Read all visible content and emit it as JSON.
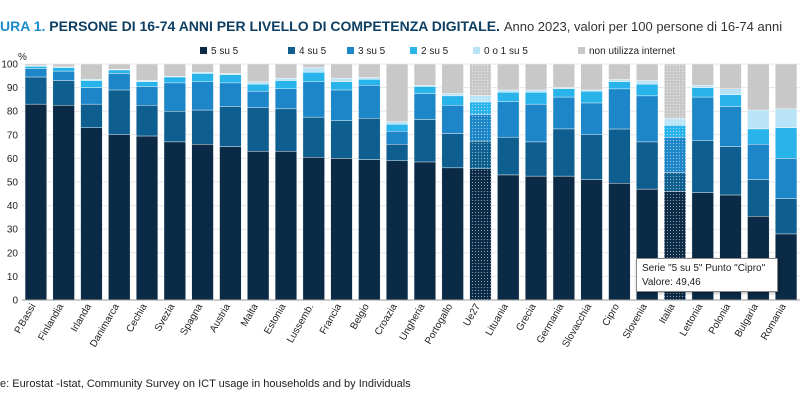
{
  "header": {
    "figure_label": "URA 1.",
    "title": "PERSONE DI 16-74 ANNI PER LIVELLO DI COMPETENZA DIGITALE.",
    "subtitle": "Anno 2023, valori per 100 persone di 16-74 anni"
  },
  "source": "e: Eurostat -Istat, Community Survey on ICT usage in households and by Individuals",
  "tooltip": {
    "line1": "Serie \"5 su 5\" Punto \"Cipro\"",
    "line2": "Valore: 49,46"
  },
  "chart_data": {
    "type": "bar",
    "stacked": true,
    "ylim": [
      0,
      100
    ],
    "y_unit_label": "%",
    "y_ticks": [
      0,
      10,
      20,
      30,
      40,
      50,
      60,
      70,
      80,
      90,
      100
    ],
    "y_tick_labels": [
      "0",
      "10",
      "20",
      "30",
      "40",
      "50",
      "60",
      "70",
      "80",
      "90",
      "100"
    ],
    "legend_position": "top",
    "categories": [
      "P.Bassi",
      "Finlandia",
      "Irlanda",
      "Danimarca",
      "Cechia",
      "Svezia",
      "Spagna",
      "Austria",
      "Malta",
      "Estonia",
      "Lussemb.",
      "Francia",
      "Belgio",
      "Croazia",
      "Ungheria",
      "Portogallo",
      "Ue27",
      "Lituania",
      "Grecia",
      "Germania",
      "Slovacchia",
      "Cipro",
      "Slovenia",
      "Italia",
      "Lettonia",
      "Polonia",
      "Bulgaria",
      "Romania"
    ],
    "highlighted_categories": [
      "Ue27",
      "Italia"
    ],
    "series": [
      {
        "name": "5 su 5",
        "color": "#0b2a45",
        "values": [
          83,
          82.5,
          73,
          70,
          69.5,
          67,
          66,
          65,
          63,
          63,
          60.5,
          60,
          59.5,
          59,
          58.5,
          56,
          55.6,
          53,
          52.5,
          52.5,
          51,
          49.46,
          47,
          46,
          45.5,
          44.5,
          35.5,
          28
        ]
      },
      {
        "name": "4 su 5",
        "color": "#0e5f8f",
        "values": [
          11.5,
          10.5,
          10,
          19,
          13,
          13,
          14.5,
          17,
          18.5,
          18,
          17,
          16,
          17.5,
          7,
          18,
          14.5,
          11.7,
          16,
          14.5,
          20,
          19,
          23,
          20,
          8,
          22,
          20.5,
          15.5,
          15
        ]
      },
      {
        "name": "3 su 5",
        "color": "#1c86c8",
        "values": [
          3.5,
          4,
          7,
          7,
          8,
          12,
          12,
          10,
          7,
          8.5,
          15,
          13,
          14,
          5.5,
          11,
          12,
          11.3,
          15,
          16,
          13.5,
          13.5,
          17,
          19.5,
          15,
          18.5,
          17,
          15,
          17
        ]
      },
      {
        "name": "2 su 5",
        "color": "#28b3ea",
        "values": [
          1,
          1.5,
          3,
          1.5,
          2,
          2.5,
          3.5,
          3.5,
          3,
          3.5,
          4,
          3.5,
          2.5,
          3,
          3,
          4,
          5.3,
          4,
          5,
          3.5,
          5,
          3,
          5,
          5,
          4,
          5,
          6.5,
          13
        ]
      },
      {
        "name": "0 o 1 su 5",
        "color": "#b9e4f7",
        "values": [
          0.3,
          0.3,
          0.5,
          0.3,
          0.5,
          0.3,
          0.5,
          0.5,
          1,
          1,
          2,
          1.5,
          0.8,
          1,
          0.5,
          1,
          2.7,
          1,
          1,
          0.5,
          0.5,
          1,
          1.5,
          3,
          1,
          2.5,
          8,
          8
        ]
      },
      {
        "name": "non utilizza internet",
        "color": "#c8c8c8",
        "values": [
          0.7,
          1.2,
          6.5,
          2.2,
          7,
          5.2,
          3.5,
          4,
          7.5,
          6,
          1.5,
          6,
          5.7,
          24.5,
          9,
          12.5,
          13.4,
          11,
          11,
          10,
          11,
          6.54,
          7,
          23,
          9,
          10.5,
          19.5,
          19
        ]
      }
    ]
  }
}
